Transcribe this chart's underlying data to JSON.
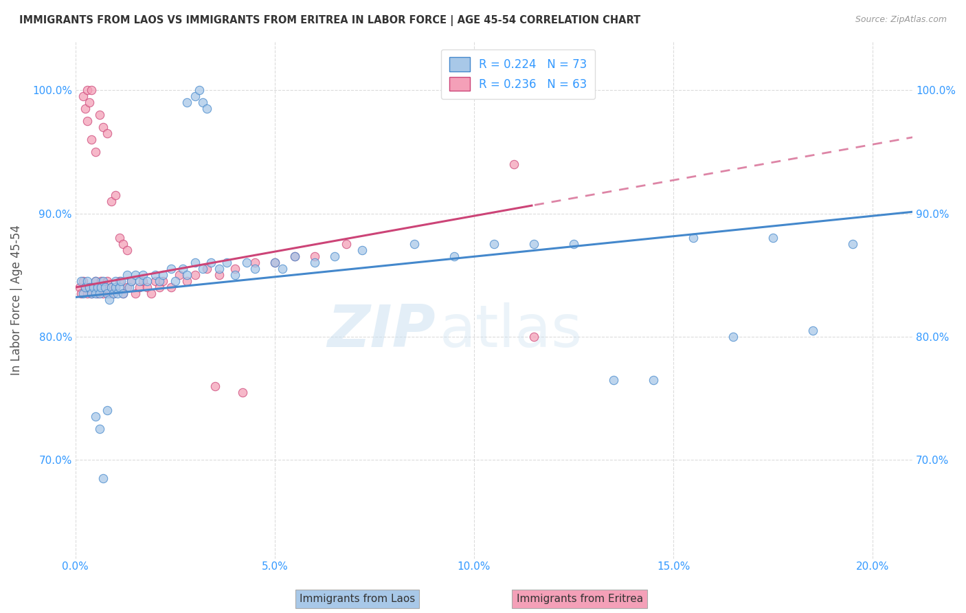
{
  "title": "IMMIGRANTS FROM LAOS VS IMMIGRANTS FROM ERITREA IN LABOR FORCE | AGE 45-54 CORRELATION CHART",
  "source": "Source: ZipAtlas.com",
  "ylabel": "In Labor Force | Age 45-54",
  "x_tick_labels": [
    "0.0%",
    "5.0%",
    "10.0%",
    "15.0%",
    "20.0%"
  ],
  "x_tick_vals": [
    0.0,
    5.0,
    10.0,
    15.0,
    20.0
  ],
  "y_tick_labels": [
    "70.0%",
    "80.0%",
    "90.0%",
    "100.0%"
  ],
  "y_tick_vals": [
    70.0,
    80.0,
    90.0,
    100.0
  ],
  "xlim": [
    0.0,
    21.0
  ],
  "ylim": [
    62.0,
    104.0
  ],
  "legend_laos": "Immigrants from Laos",
  "legend_eritrea": "Immigrants from Eritrea",
  "R_laos": "0.224",
  "N_laos": "73",
  "R_eritrea": "0.236",
  "N_eritrea": "63",
  "color_laos": "#a8c8e8",
  "color_eritrea": "#f4a0b8",
  "color_laos_line": "#4488cc",
  "color_eritrea_line": "#cc4477",
  "watermark_zip": "ZIP",
  "watermark_atlas": "atlas",
  "background_color": "#ffffff",
  "grid_color": "#cccccc",
  "title_color": "#333333",
  "axis_label_color": "#555555",
  "tick_color": "#3399ff",
  "laos_x": [
    0.15,
    0.2,
    0.25,
    0.3,
    0.35,
    0.4,
    0.45,
    0.5,
    0.5,
    0.55,
    0.6,
    0.65,
    0.7,
    0.75,
    0.8,
    0.85,
    0.9,
    0.95,
    1.0,
    1.0,
    1.05,
    1.1,
    1.15,
    1.2,
    1.3,
    1.35,
    1.4,
    1.5,
    1.6,
    1.7,
    1.8,
    2.0,
    2.1,
    2.2,
    2.4,
    2.5,
    2.7,
    2.8,
    3.0,
    3.2,
    3.4,
    3.6,
    3.8,
    4.0,
    4.3,
    4.5,
    5.0,
    5.2,
    5.5,
    6.0,
    6.5,
    7.2,
    8.5,
    9.5,
    10.5,
    11.5,
    12.5,
    13.5,
    14.5,
    15.5,
    16.5,
    17.5,
    18.5,
    19.5,
    2.8,
    3.0,
    3.1,
    3.2,
    3.3,
    0.5,
    0.6,
    0.7,
    0.8
  ],
  "laos_y": [
    84.5,
    83.5,
    84.0,
    84.5,
    84.0,
    83.5,
    84.0,
    83.5,
    84.5,
    84.0,
    83.5,
    84.0,
    84.5,
    84.0,
    83.5,
    83.0,
    84.0,
    83.5,
    84.0,
    84.5,
    83.5,
    84.0,
    84.5,
    83.5,
    85.0,
    84.0,
    84.5,
    85.0,
    84.5,
    85.0,
    84.5,
    85.0,
    84.5,
    85.0,
    85.5,
    84.5,
    85.5,
    85.0,
    86.0,
    85.5,
    86.0,
    85.5,
    86.0,
    85.0,
    86.0,
    85.5,
    86.0,
    85.5,
    86.5,
    86.0,
    86.5,
    87.0,
    87.5,
    86.5,
    87.5,
    87.5,
    87.5,
    76.5,
    76.5,
    88.0,
    80.0,
    88.0,
    80.5,
    87.5,
    99.0,
    99.5,
    100.0,
    99.0,
    98.5,
    73.5,
    72.5,
    68.5,
    74.0
  ],
  "eritrea_x": [
    0.1,
    0.15,
    0.2,
    0.25,
    0.3,
    0.35,
    0.4,
    0.45,
    0.5,
    0.55,
    0.6,
    0.65,
    0.7,
    0.75,
    0.8,
    0.85,
    0.9,
    0.95,
    1.0,
    1.1,
    1.2,
    1.3,
    1.4,
    1.5,
    1.6,
    1.7,
    1.8,
    1.9,
    2.0,
    2.1,
    2.2,
    2.4,
    2.6,
    2.8,
    3.0,
    3.3,
    3.6,
    4.0,
    4.5,
    5.0,
    5.5,
    6.0,
    6.8,
    11.0,
    0.3,
    0.4,
    0.5,
    0.6,
    0.7,
    0.8,
    0.9,
    1.0,
    1.1,
    1.2,
    1.3,
    0.2,
    0.25,
    0.3,
    0.35,
    0.4,
    3.5,
    4.2,
    11.5
  ],
  "eritrea_y": [
    84.0,
    83.5,
    84.5,
    84.0,
    83.5,
    84.0,
    83.5,
    84.0,
    84.5,
    83.5,
    84.0,
    84.5,
    83.5,
    84.0,
    84.5,
    83.5,
    84.0,
    83.5,
    84.0,
    84.5,
    83.5,
    84.0,
    84.5,
    83.5,
    84.0,
    84.5,
    84.0,
    83.5,
    84.5,
    84.0,
    84.5,
    84.0,
    85.0,
    84.5,
    85.0,
    85.5,
    85.0,
    85.5,
    86.0,
    86.0,
    86.5,
    86.5,
    87.5,
    94.0,
    97.5,
    96.0,
    95.0,
    98.0,
    97.0,
    96.5,
    91.0,
    91.5,
    88.0,
    87.5,
    87.0,
    99.5,
    98.5,
    100.0,
    99.0,
    100.0,
    76.0,
    75.5,
    80.0
  ]
}
